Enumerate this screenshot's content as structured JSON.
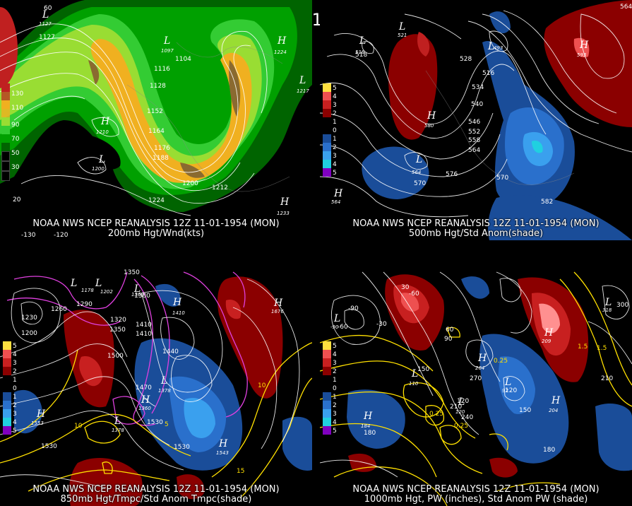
{
  "title": "12Z 11-01-1954 (MON)",
  "panels": [
    {
      "source": "NOAA NWS NCEP REANALYSIS 12Z 11-01-1954 (MON)",
      "subtitle": "200mb Hgt/Wnd(kts)",
      "legend": [
        "130",
        "110",
        "90",
        "70",
        "50",
        "30"
      ],
      "contour_labels": [
        "1127",
        "1128",
        "1116",
        "1104",
        "1128",
        "1152",
        "1164",
        "1176",
        "1188",
        "1200",
        "1212",
        "1224",
        "1237",
        "1210",
        "1200",
        "1217",
        "1224",
        "60",
        "20",
        "-120",
        "-130"
      ],
      "systems": [
        {
          "type": "L",
          "value": "1127"
        },
        {
          "type": "L",
          "value": "1097"
        },
        {
          "type": "H",
          "value": "1224"
        },
        {
          "type": "L",
          "value": "1217"
        },
        {
          "type": "H",
          "value": "1210"
        },
        {
          "type": "L",
          "value": "1200"
        },
        {
          "type": "H",
          "value": "1233"
        }
      ]
    },
    {
      "source": "NOAA NWS NCEP REANALYSIS 12Z 11-01-1954 (MON)",
      "subtitle": "500mb Hgt/Std Anom(shade)",
      "legend": [
        "5",
        "4",
        "3",
        "2",
        "1",
        "0",
        "1",
        "2",
        "3",
        "4",
        "5"
      ],
      "contour_labels": [
        "518",
        "528",
        "516",
        "534",
        "540",
        "546",
        "552",
        "558",
        "564",
        "570",
        "576",
        "582",
        "570",
        "493",
        "540",
        "593",
        "564",
        "564"
      ],
      "systems": [
        {
          "type": "L",
          "value": "518"
        },
        {
          "type": "L",
          "value": "521"
        },
        {
          "type": "L",
          "value": "493"
        },
        {
          "type": "H",
          "value": "593"
        },
        {
          "type": "H",
          "value": "580"
        },
        {
          "type": "L",
          "value": "564"
        },
        {
          "type": "H",
          "value": "564"
        }
      ]
    },
    {
      "source": "NOAA NWS NCEP REANALYSIS 12Z 11-01-1954 (MON)",
      "subtitle": "850mb Hgt/Tmpc/Std Anom Tmpc(shade)",
      "legend": [
        "5",
        "4",
        "3",
        "2",
        "1",
        "0",
        "1",
        "2",
        "3",
        "4",
        "5"
      ],
      "contour_labels": [
        "1230",
        "1200",
        "1260",
        "1290",
        "1320",
        "1350",
        "1380",
        "1410",
        "1440",
        "1470",
        "1500",
        "1530",
        "1530",
        "1530",
        "1500",
        "1410",
        "1440",
        "1380",
        "1320",
        "1350",
        "15",
        "10",
        "5",
        "10",
        "15",
        "-5"
      ],
      "systems": [
        {
          "type": "L",
          "value": "1178"
        },
        {
          "type": "L",
          "value": "1202"
        },
        {
          "type": "L",
          "value": "1369"
        },
        {
          "type": "H",
          "value": "1410"
        },
        {
          "type": "H",
          "value": "1676"
        },
        {
          "type": "L",
          "value": "1378"
        },
        {
          "type": "H",
          "value": "1360"
        },
        {
          "type": "H",
          "value": "1553"
        },
        {
          "type": "H",
          "value": "1543"
        },
        {
          "type": "L",
          "value": "1378"
        }
      ]
    },
    {
      "source": "NOAA NWS NCEP REANALYSIS 12Z 11-01-1954 (MON)",
      "subtitle": "1000mb Hgt, PW (inches), Std Anom PW (shade)",
      "legend": [
        "5",
        "4",
        "3",
        "2",
        "1",
        "0",
        "1",
        "2",
        "3",
        "4",
        "5"
      ],
      "contour_labels": [
        "-60",
        "-30",
        "-60",
        "30",
        "60",
        "90",
        "120",
        "150",
        "180",
        "210",
        "240",
        "270",
        "300",
        "-90",
        "0.25",
        "0.25",
        "0.25",
        "1.5",
        "120",
        "150",
        "180",
        "210",
        "1.5"
      ],
      "systems": [
        {
          "type": "L",
          "value": "-90"
        },
        {
          "type": "L",
          "value": "110"
        },
        {
          "type": "H",
          "value": "184"
        },
        {
          "type": "H",
          "value": "264"
        },
        {
          "type": "H",
          "value": "209"
        },
        {
          "type": "L",
          "value": "92"
        },
        {
          "type": "L",
          "value": "120"
        },
        {
          "type": "H",
          "value": "204"
        },
        {
          "type": "L",
          "value": "318"
        }
      ]
    }
  ],
  "colors": {
    "wind_30": "#006400",
    "wind_50": "#00a000",
    "wind_70": "#33cc33",
    "wind_90": "#99dd33",
    "wind_110": "#f0b020",
    "wind_130": "#c02020",
    "anom_pos1": "#8b0000",
    "anom_pos2": "#c82020",
    "anom_pos3": "#ee5050",
    "anom_pos4": "#ff9090",
    "anom_pos5": "#ffc8c8",
    "anom_neg1": "#1a4d99",
    "anom_neg2": "#2a70cc",
    "anom_neg3": "#3aa0ee",
    "anom_neg4": "#20d0e0",
    "anom_neg5": "#8000c0",
    "temp_contour": "#ffe000",
    "cold_contour": "#e040e0",
    "height_contour": "#ffffff"
  }
}
